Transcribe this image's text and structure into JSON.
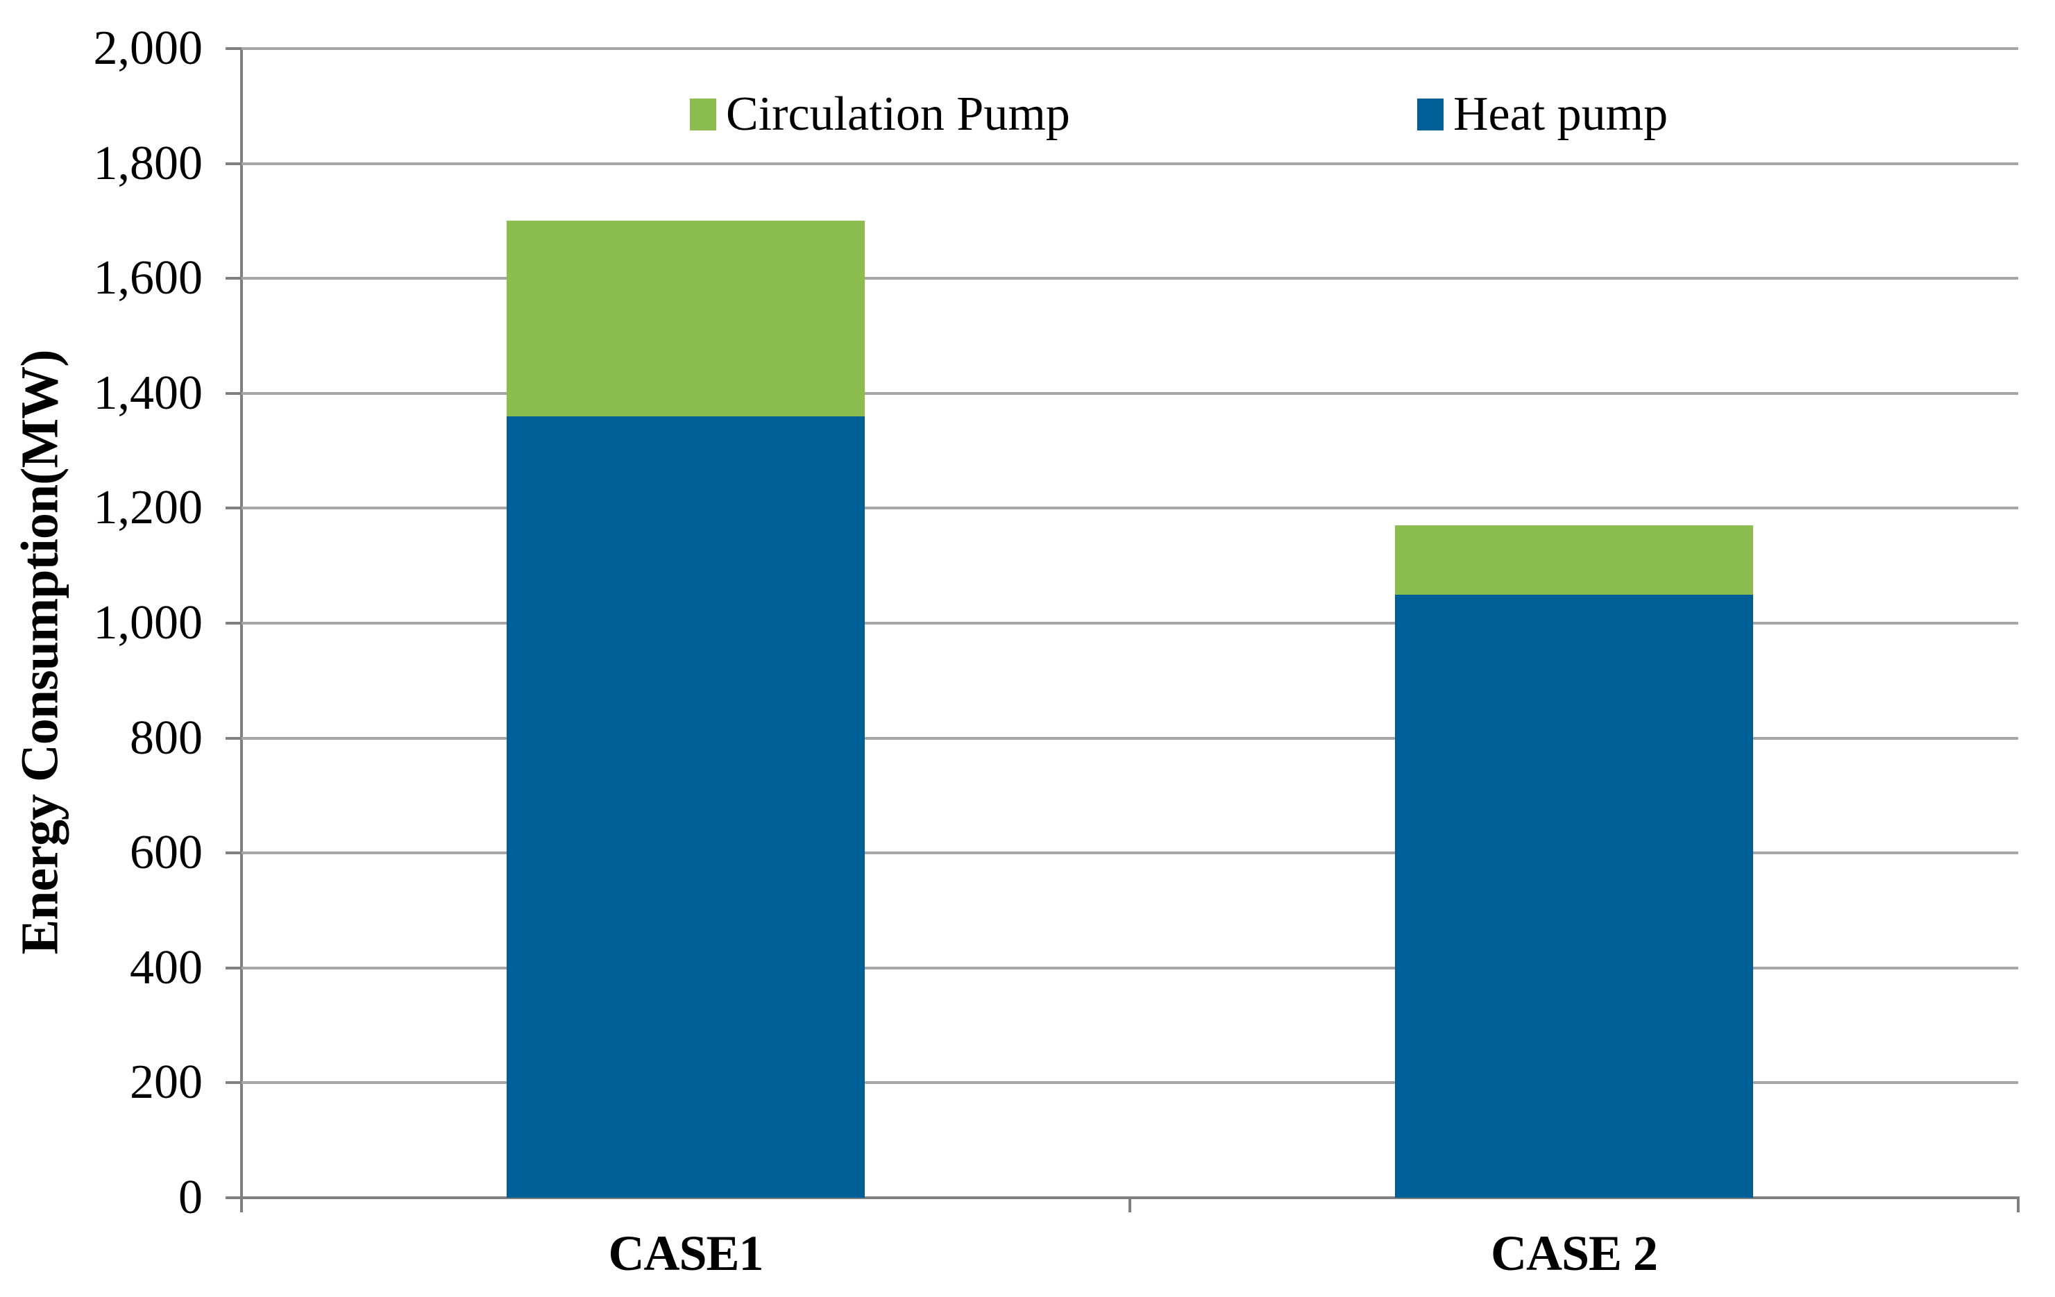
{
  "chart_data": {
    "type": "bar",
    "stacked": true,
    "title": "",
    "categories": [
      "CASE1",
      "CASE 2"
    ],
    "series": [
      {
        "name": "Heat pump",
        "color": "#005F96",
        "values": [
          1360,
          1050
        ]
      },
      {
        "name": "Circulation Pump",
        "color": "#8BBE4F",
        "values": [
          340,
          120
        ]
      }
    ],
    "stack_totals": [
      1700,
      1170
    ],
    "xlabel": "",
    "ylabel": "Energy Consumption(MW)",
    "ylim": [
      0,
      2000
    ],
    "ytick_step": 200,
    "ytick_labels": [
      "0",
      "200",
      "400",
      "600",
      "800",
      "1,000",
      "1,200",
      "1,400",
      "1,600",
      "1,800",
      "2,000"
    ],
    "grid": true,
    "legend_position": "top-inside",
    "legend": [
      {
        "label": "Circulation Pump",
        "color": "#8BBE4F"
      },
      {
        "label": "Heat pump",
        "color": "#005F96"
      }
    ]
  },
  "styles": {
    "background": "#FFFFFF",
    "gridline_color": "#A6A6A6",
    "axis_color": "#808080",
    "text_color": "#000000",
    "heat_pump_color": "#005F96",
    "circulation_pump_color": "#8BBE4F"
  }
}
